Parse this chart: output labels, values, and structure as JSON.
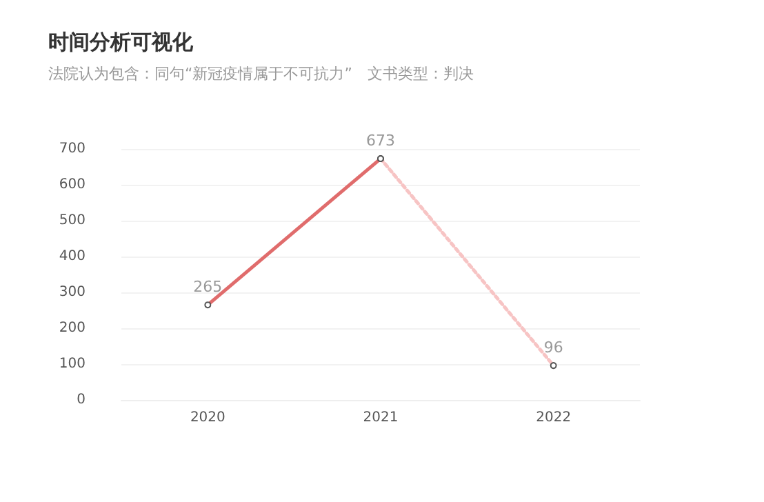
{
  "chart_data": {
    "type": "line",
    "title": "时间分析可视化",
    "subtitle": "法院认为包含：同句“新冠疫情属于不可抗力”　文书类型：判决",
    "categories": [
      "2020",
      "2021",
      "2022"
    ],
    "series": [
      {
        "color": "#e06c6c",
        "line_style": "solid",
        "values": [
          265,
          673,
          null
        ],
        "value_labels": [
          "265",
          "673",
          null
        ]
      },
      {
        "color": "#f7c4c4",
        "line_style": "dotted",
        "values": [
          null,
          673,
          96
        ],
        "value_labels": [
          null,
          null,
          "96"
        ]
      }
    ],
    "ylim": [
      0,
      700
    ],
    "yticks": [
      0,
      100,
      200,
      300,
      400,
      500,
      600,
      700
    ],
    "grid": "y",
    "marker": "circle"
  }
}
